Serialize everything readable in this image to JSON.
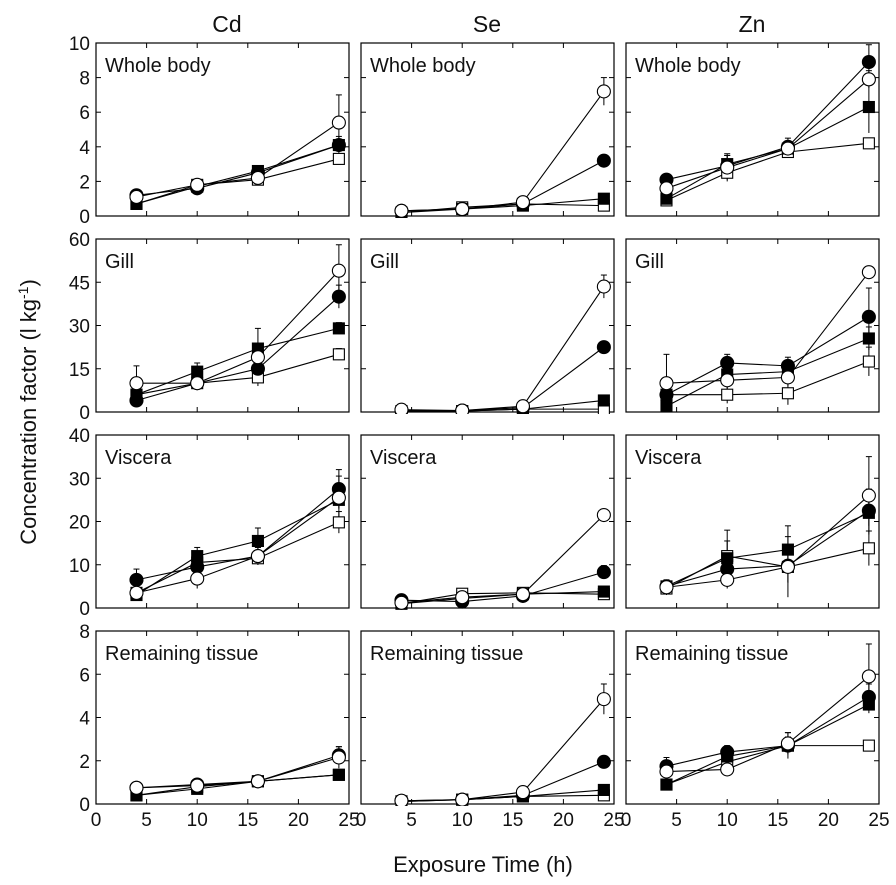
{
  "figure": {
    "x_label": "Exposure Time (h)",
    "y_label_main": "Concentration factor (l kg",
    "y_label_sup": "-1",
    "y_label_end": ")",
    "columns": [
      "Cd",
      "Se",
      "Zn"
    ],
    "rows": [
      "Whole body",
      "Gill",
      "Viscera",
      "Remaining tissue"
    ]
  },
  "chart_data": [
    {
      "type": "line",
      "element": "Cd",
      "tissue": "Whole body",
      "title": "Whole body",
      "x": [
        4,
        10,
        16,
        24
      ],
      "xlim": [
        0,
        25
      ],
      "xticks": [
        0,
        5,
        10,
        15,
        20,
        25
      ],
      "ylim": [
        0,
        10
      ],
      "yticks": [
        0,
        2,
        4,
        6,
        8,
        10
      ],
      "series": [
        {
          "marker": "filled-circle",
          "values": [
            1.2,
            1.6,
            2.5,
            4.1
          ],
          "errors": [
            0.2,
            0.2,
            0.2,
            0.5
          ]
        },
        {
          "marker": "open-circle",
          "values": [
            1.1,
            1.8,
            2.2,
            5.4
          ],
          "errors": [
            0.2,
            0.3,
            0.3,
            1.6
          ]
        },
        {
          "marker": "filled-square",
          "values": [
            0.7,
            1.7,
            2.6,
            4.1
          ],
          "errors": [
            0.1,
            0.2,
            0.2,
            0.3
          ]
        },
        {
          "marker": "open-square",
          "values": [
            0.7,
            1.8,
            2.1,
            3.3
          ],
          "errors": [
            0.1,
            0.2,
            0.2,
            0.2
          ]
        }
      ]
    },
    {
      "type": "line",
      "element": "Se",
      "tissue": "Whole body",
      "title": "Whole body",
      "x": [
        4,
        10,
        16,
        24
      ],
      "xlim": [
        0,
        25
      ],
      "xticks": [
        0,
        5,
        10,
        15,
        20,
        25
      ],
      "ylim": [
        0,
        10
      ],
      "yticks": [
        0,
        2,
        4,
        6,
        8,
        10
      ],
      "series": [
        {
          "marker": "filled-circle",
          "values": [
            0.3,
            0.4,
            0.7,
            3.2
          ],
          "errors": [
            0.05,
            0.05,
            0.1,
            0.2
          ]
        },
        {
          "marker": "open-circle",
          "values": [
            0.3,
            0.4,
            0.8,
            7.2
          ],
          "errors": [
            0.05,
            0.05,
            0.1,
            0.8
          ]
        },
        {
          "marker": "filled-square",
          "values": [
            0.2,
            0.4,
            0.6,
            1.0
          ],
          "errors": [
            0.05,
            0.05,
            0.1,
            0.1
          ]
        },
        {
          "marker": "open-square",
          "values": [
            0.2,
            0.5,
            0.7,
            0.6
          ],
          "errors": [
            0.05,
            0.05,
            0.1,
            0.1
          ]
        }
      ]
    },
    {
      "type": "line",
      "element": "Zn",
      "tissue": "Whole body",
      "title": "Whole body",
      "x": [
        4,
        10,
        16,
        24
      ],
      "xlim": [
        0,
        25
      ],
      "xticks": [
        0,
        5,
        10,
        15,
        20,
        25
      ],
      "ylim": [
        0,
        10
      ],
      "yticks": [
        0,
        2,
        4,
        6,
        8,
        10
      ],
      "series": [
        {
          "marker": "filled-circle",
          "values": [
            2.1,
            2.9,
            4.0,
            8.9
          ],
          "errors": [
            0.3,
            0.6,
            0.5,
            1.0
          ]
        },
        {
          "marker": "open-circle",
          "values": [
            1.6,
            2.8,
            3.9,
            7.9
          ],
          "errors": [
            0.2,
            0.8,
            0.4,
            0.5
          ]
        },
        {
          "marker": "filled-square",
          "values": [
            1.0,
            3.0,
            3.9,
            6.3
          ],
          "errors": [
            0.2,
            0.5,
            0.3,
            1.5
          ]
        },
        {
          "marker": "open-square",
          "values": [
            0.9,
            2.5,
            3.7,
            4.2
          ],
          "errors": [
            0.2,
            0.4,
            0.3,
            0.3
          ]
        }
      ]
    },
    {
      "type": "line",
      "element": "Cd",
      "tissue": "Gill",
      "title": "Gill",
      "x": [
        4,
        10,
        16,
        24
      ],
      "xlim": [
        0,
        25
      ],
      "xticks": [
        0,
        5,
        10,
        15,
        20,
        25
      ],
      "ylim": [
        0,
        60
      ],
      "yticks": [
        0,
        15,
        30,
        45,
        60
      ],
      "series": [
        {
          "marker": "filled-circle",
          "values": [
            4,
            10,
            15,
            40
          ],
          "errors": [
            1,
            2,
            2,
            4
          ]
        },
        {
          "marker": "open-circle",
          "values": [
            10,
            10,
            19,
            49
          ],
          "errors": [
            6,
            2,
            3,
            9
          ]
        },
        {
          "marker": "filled-square",
          "values": [
            6,
            14,
            22,
            29
          ],
          "errors": [
            1,
            3,
            7,
            2
          ]
        },
        {
          "marker": "open-square",
          "values": [
            6,
            10,
            12,
            20
          ],
          "errors": [
            1,
            2,
            3,
            2
          ]
        }
      ]
    },
    {
      "type": "line",
      "element": "Se",
      "tissue": "Gill",
      "title": "Gill",
      "x": [
        4,
        10,
        16,
        24
      ],
      "xlim": [
        0,
        25
      ],
      "xticks": [
        0,
        5,
        10,
        15,
        20,
        25
      ],
      "ylim": [
        0,
        60
      ],
      "yticks": [
        0,
        15,
        30,
        45,
        60
      ],
      "series": [
        {
          "marker": "filled-circle",
          "values": [
            0.5,
            0.5,
            1.5,
            22.5
          ],
          "errors": [
            0.2,
            0.2,
            0.3,
            1
          ]
        },
        {
          "marker": "open-circle",
          "values": [
            0.8,
            0.5,
            2,
            43.5
          ],
          "errors": [
            0.2,
            0.2,
            0.3,
            4
          ]
        },
        {
          "marker": "filled-square",
          "values": [
            0.3,
            0.3,
            1,
            4
          ],
          "errors": [
            0.1,
            0.1,
            0.2,
            0.5
          ]
        },
        {
          "marker": "open-square",
          "values": [
            0.3,
            0.3,
            1,
            1
          ],
          "errors": [
            0.1,
            0.1,
            0.2,
            0.3
          ]
        }
      ]
    },
    {
      "type": "line",
      "element": "Zn",
      "tissue": "Gill",
      "title": "Gill",
      "x": [
        4,
        10,
        16,
        24
      ],
      "xlim": [
        0,
        25
      ],
      "xticks": [
        0,
        5,
        10,
        15,
        20,
        25
      ],
      "ylim": [
        0,
        60
      ],
      "yticks": [
        0,
        15,
        30,
        45,
        60
      ],
      "series": [
        {
          "marker": "filled-circle",
          "values": [
            6,
            17,
            16,
            33
          ],
          "errors": [
            1,
            3,
            3,
            10
          ]
        },
        {
          "marker": "open-circle",
          "values": [
            10,
            11,
            12,
            48.5
          ],
          "errors": [
            10,
            3,
            3,
            2
          ]
        },
        {
          "marker": "filled-square",
          "values": [
            2,
            13,
            14,
            25.5
          ],
          "errors": [
            1,
            3,
            4,
            4
          ]
        },
        {
          "marker": "open-square",
          "values": [
            6,
            6,
            6.5,
            17.5
          ],
          "errors": [
            1,
            3,
            4,
            5
          ]
        }
      ]
    },
    {
      "type": "line",
      "element": "Cd",
      "tissue": "Viscera",
      "title": "Viscera",
      "x": [
        4,
        10,
        16,
        24
      ],
      "xlim": [
        0,
        25
      ],
      "xticks": [
        0,
        5,
        10,
        15,
        20,
        25
      ],
      "ylim": [
        0,
        40
      ],
      "yticks": [
        0,
        10,
        20,
        30,
        40
      ],
      "series": [
        {
          "marker": "filled-circle",
          "values": [
            6.5,
            9.5,
            12,
            27.5
          ],
          "errors": [
            2.5,
            2,
            2,
            4.5
          ]
        },
        {
          "marker": "open-circle",
          "values": [
            3.5,
            6.8,
            12,
            25.5
          ],
          "errors": [
            1,
            2.3,
            2,
            5
          ]
        },
        {
          "marker": "filled-square",
          "values": [
            3,
            12,
            15.5,
            25
          ],
          "errors": [
            1,
            2,
            3,
            2
          ]
        },
        {
          "marker": "open-square",
          "values": [
            3.5,
            10.5,
            11.5,
            19.8
          ],
          "errors": [
            1,
            2,
            1.5,
            2.5
          ]
        }
      ]
    },
    {
      "type": "line",
      "element": "Se",
      "tissue": "Viscera",
      "title": "Viscera",
      "x": [
        4,
        10,
        16,
        24
      ],
      "xlim": [
        0,
        25
      ],
      "xticks": [
        0,
        5,
        10,
        15,
        20,
        25
      ],
      "ylim": [
        0,
        40
      ],
      "yticks": [
        0,
        10,
        20,
        30,
        40
      ],
      "series": [
        {
          "marker": "filled-circle",
          "values": [
            1.8,
            1.5,
            2.8,
            8.3
          ],
          "errors": [
            0.3,
            0.3,
            0.4,
            1.5
          ]
        },
        {
          "marker": "open-circle",
          "values": [
            1.2,
            2.5,
            3.2,
            21.5
          ],
          "errors": [
            0.3,
            0.4,
            0.4,
            1
          ]
        },
        {
          "marker": "filled-square",
          "values": [
            1,
            2.2,
            3.2,
            3.8
          ],
          "errors": [
            0.2,
            0.3,
            0.4,
            0.5
          ]
        },
        {
          "marker": "open-square",
          "values": [
            1,
            3.3,
            3.5,
            3.2
          ],
          "errors": [
            0.2,
            0.4,
            0.4,
            0.4
          ]
        }
      ]
    },
    {
      "type": "line",
      "element": "Zn",
      "tissue": "Viscera",
      "title": "Viscera",
      "x": [
        4,
        10,
        16,
        24
      ],
      "xlim": [
        0,
        25
      ],
      "xticks": [
        0,
        5,
        10,
        15,
        20,
        25
      ],
      "ylim": [
        0,
        40
      ],
      "yticks": [
        0,
        10,
        20,
        30,
        40
      ],
      "series": [
        {
          "marker": "filled-circle",
          "values": [
            5,
            9,
            9.8,
            22.5
          ],
          "errors": [
            1.5,
            3,
            4,
            5
          ]
        },
        {
          "marker": "open-circle",
          "values": [
            4.8,
            6.5,
            9.5,
            26
          ],
          "errors": [
            1.5,
            2,
            3.5,
            9
          ]
        },
        {
          "marker": "filled-square",
          "values": [
            5,
            11.5,
            13.5,
            22
          ],
          "errors": [
            1.5,
            4,
            5.5,
            3
          ]
        },
        {
          "marker": "open-square",
          "values": [
            4.5,
            12,
            9.5,
            13.8
          ],
          "errors": [
            1.5,
            6,
            7,
            4
          ]
        }
      ]
    },
    {
      "type": "line",
      "element": "Cd",
      "tissue": "Remaining tissue",
      "title": "Remaining tissue",
      "x": [
        4,
        10,
        16,
        24
      ],
      "xlim": [
        0,
        25
      ],
      "xticks": [
        0,
        5,
        10,
        15,
        20,
        25
      ],
      "ylim": [
        0,
        8
      ],
      "yticks": [
        0,
        2,
        4,
        6,
        8
      ],
      "series": [
        {
          "marker": "filled-circle",
          "values": [
            0.75,
            0.9,
            1.05,
            2.25
          ],
          "errors": [
            0.1,
            0.1,
            0.1,
            0.4
          ]
        },
        {
          "marker": "open-circle",
          "values": [
            0.75,
            0.85,
            1.05,
            2.15
          ],
          "errors": [
            0.1,
            0.1,
            0.1,
            0.5
          ]
        },
        {
          "marker": "filled-square",
          "values": [
            0.4,
            0.7,
            1.05,
            1.35
          ],
          "errors": [
            0.1,
            0.1,
            0.1,
            0.2
          ]
        },
        {
          "marker": "open-square",
          "values": [
            0.4,
            0.8,
            1.05,
            1.35
          ],
          "errors": [
            0.1,
            0.1,
            0.1,
            0.2
          ]
        }
      ]
    },
    {
      "type": "line",
      "element": "Se",
      "tissue": "Remaining tissue",
      "title": "Remaining tissue",
      "x": [
        4,
        10,
        16,
        24
      ],
      "xlim": [
        0,
        25
      ],
      "xticks": [
        0,
        5,
        10,
        15,
        20,
        25
      ],
      "ylim": [
        0,
        8
      ],
      "yticks": [
        0,
        2,
        4,
        6,
        8
      ],
      "series": [
        {
          "marker": "filled-circle",
          "values": [
            0.15,
            0.2,
            0.4,
            1.95
          ],
          "errors": [
            0.05,
            0.05,
            0.1,
            0.2
          ]
        },
        {
          "marker": "open-circle",
          "values": [
            0.15,
            0.2,
            0.55,
            4.85
          ],
          "errors": [
            0.05,
            0.05,
            0.1,
            0.7
          ]
        },
        {
          "marker": "filled-square",
          "values": [
            0.12,
            0.2,
            0.35,
            0.65
          ],
          "errors": [
            0.03,
            0.05,
            0.1,
            0.1
          ]
        },
        {
          "marker": "open-square",
          "values": [
            0.12,
            0.2,
            0.35,
            0.4
          ],
          "errors": [
            0.03,
            0.05,
            0.1,
            0.1
          ]
        }
      ]
    },
    {
      "type": "line",
      "element": "Zn",
      "tissue": "Remaining tissue",
      "title": "Remaining tissue",
      "x": [
        4,
        10,
        16,
        24
      ],
      "xlim": [
        0,
        25
      ],
      "xticks": [
        0,
        5,
        10,
        15,
        20,
        25
      ],
      "ylim": [
        0,
        8
      ],
      "yticks": [
        0,
        2,
        4,
        6,
        8
      ],
      "series": [
        {
          "marker": "filled-circle",
          "values": [
            1.75,
            2.4,
            2.7,
            4.95
          ],
          "errors": [
            0.4,
            0.3,
            0.4,
            0.6
          ]
        },
        {
          "marker": "open-circle",
          "values": [
            1.5,
            1.6,
            2.8,
            5.9
          ],
          "errors": [
            0.3,
            0.3,
            0.5,
            1.5
          ]
        },
        {
          "marker": "filled-square",
          "values": [
            0.9,
            2.2,
            2.7,
            4.6
          ],
          "errors": [
            0.2,
            0.3,
            0.6,
            0.4
          ]
        },
        {
          "marker": "open-square",
          "values": [
            0.9,
            1.95,
            2.7,
            2.7
          ],
          "errors": [
            0.2,
            0.3,
            0.3,
            0.2
          ]
        }
      ]
    }
  ]
}
